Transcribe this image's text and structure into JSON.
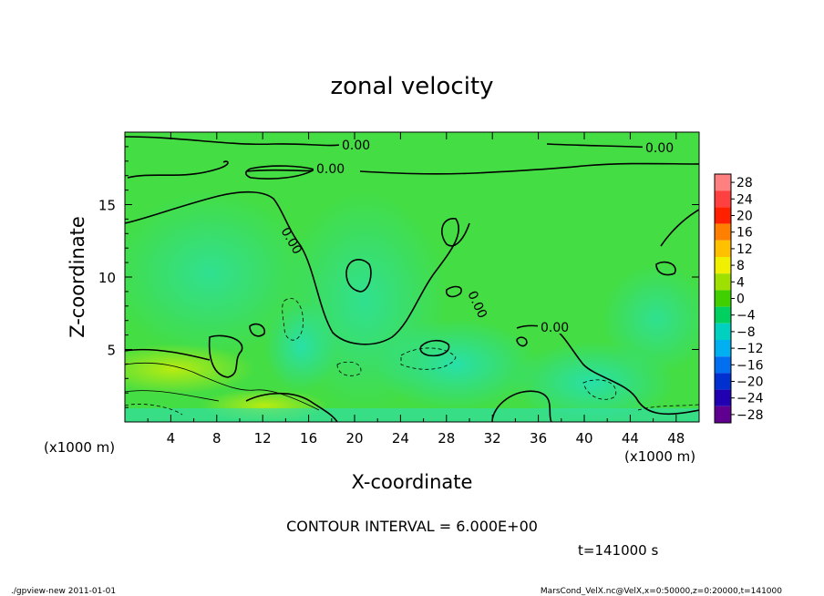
{
  "chart_data": {
    "type": "heatmap",
    "title": "zonal velocity",
    "xlabel": "X-coordinate",
    "ylabel": "Z-coordinate",
    "x_unit_label": "(x1000 m)",
    "y_unit_label": "(x1000 m)",
    "xlim": [
      0,
      50
    ],
    "ylim": [
      0,
      20
    ],
    "x_ticks": [
      "4",
      "8",
      "12",
      "16",
      "20",
      "24",
      "28",
      "32",
      "36",
      "40",
      "44",
      "48"
    ],
    "y_ticks": [
      "5",
      "10",
      "15"
    ],
    "contour_labels": [
      "0.00",
      "0.00",
      "0.00",
      "0.00",
      "0.00",
      "0.00"
    ],
    "colorbar": {
      "levels": [
        "28",
        "24",
        "20",
        "16",
        "12",
        "8",
        "4",
        "0",
        "−4",
        "−8",
        "−12",
        "−16",
        "−20",
        "−24",
        "−28"
      ],
      "colors": [
        "#ff8080",
        "#ff4040",
        "#ff2000",
        "#ff8000",
        "#ffc000",
        "#f0f000",
        "#a0e000",
        "#40d000",
        "#00d060",
        "#00d0c0",
        "#00b0f0",
        "#0070f0",
        "#0030d0",
        "#2000b0",
        "#600090"
      ]
    },
    "contour_interval": "CONTOUR INTERVAL = 6.000E+00",
    "time_label": "t=141000 s"
  },
  "footer": {
    "left": "./gpview-new   2011-01-01",
    "right": "MarsCond_VelX.nc@VelX,x=0:50000,z=0:20000,t=141000"
  }
}
